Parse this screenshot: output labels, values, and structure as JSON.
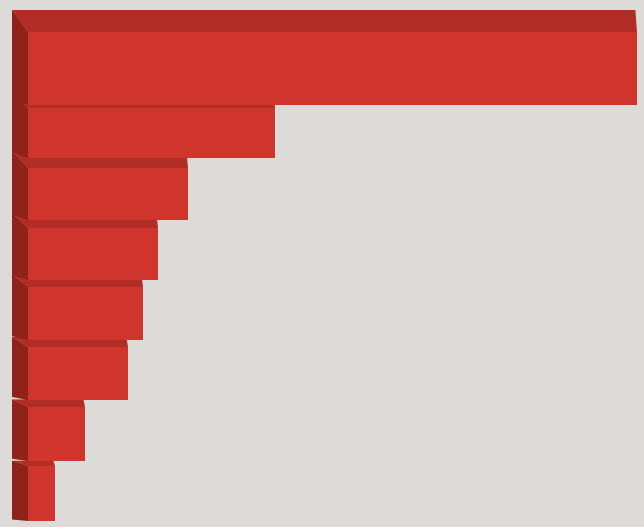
{
  "chart_data": {
    "type": "bar3d",
    "orientation": "horizontal",
    "categories": [
      null,
      null,
      null,
      null,
      null,
      null,
      null,
      null
    ],
    "values": [
      609,
      247,
      160,
      130,
      115,
      100,
      57,
      27
    ],
    "color": "#d0352d",
    "top_color": "#b22d26",
    "side_color": "#8f2219"
  }
}
